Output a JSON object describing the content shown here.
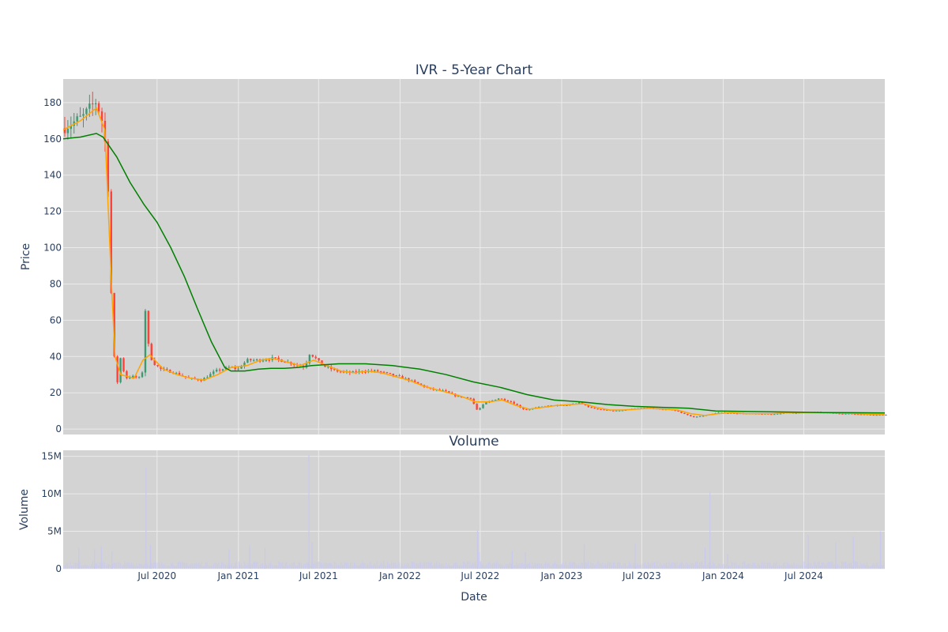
{
  "chart_data": [
    {
      "type": "candlestick",
      "title": "IVR - 5-Year Chart",
      "ylabel": "Price",
      "ylim": [
        -3,
        193
      ],
      "yticks": [
        0,
        20,
        40,
        60,
        80,
        100,
        120,
        140,
        160,
        180
      ],
      "grid": true,
      "series": [
        {
          "name": "",
          "kind": "ohlc",
          "colors": {
            "up": "#3d9970",
            "down": "#ff4136"
          }
        },
        {
          "name": "",
          "kind": "moving-average-short",
          "color": "#ffa500",
          "points": [
            [
              "2019-12-02",
              165
            ],
            [
              "2020-01-10",
              170
            ],
            [
              "2020-02-15",
              177
            ],
            [
              "2020-03-05",
              165
            ],
            [
              "2020-03-20",
              80
            ],
            [
              "2020-03-28",
              40
            ],
            [
              "2020-04-10",
              30
            ],
            [
              "2020-05-10",
              28
            ],
            [
              "2020-05-30",
              38
            ],
            [
              "2020-06-15",
              41
            ],
            [
              "2020-07-15",
              33
            ],
            [
              "2020-08-15",
              30
            ],
            [
              "2020-09-15",
              28
            ],
            [
              "2020-10-15",
              27
            ],
            [
              "2020-11-15",
              30
            ],
            [
              "2020-12-15",
              34
            ],
            [
              "2021-01-20",
              35
            ],
            [
              "2021-02-20",
              38
            ],
            [
              "2021-03-20",
              39
            ],
            [
              "2021-04-20",
              37
            ],
            [
              "2021-05-20",
              35
            ],
            [
              "2021-06-20",
              38
            ],
            [
              "2021-07-20",
              35
            ],
            [
              "2021-08-20",
              32
            ],
            [
              "2021-09-20",
              31
            ],
            [
              "2021-10-20",
              32
            ],
            [
              "2021-11-20",
              31
            ],
            [
              "2021-12-20",
              29
            ],
            [
              "2022-01-20",
              27
            ],
            [
              "2022-02-20",
              24
            ],
            [
              "2022-03-20",
              22
            ],
            [
              "2022-04-20",
              20
            ],
            [
              "2022-05-20",
              18
            ],
            [
              "2022-06-20",
              15
            ],
            [
              "2022-07-20",
              15
            ],
            [
              "2022-08-20",
              16
            ],
            [
              "2022-09-20",
              13
            ],
            [
              "2022-10-20",
              11
            ],
            [
              "2022-11-20",
              12
            ],
            [
              "2022-12-20",
              13
            ],
            [
              "2023-01-20",
              13.5
            ],
            [
              "2023-02-20",
              14
            ],
            [
              "2023-03-20",
              12
            ],
            [
              "2023-04-20",
              10.5
            ],
            [
              "2023-05-20",
              10.5
            ],
            [
              "2023-06-20",
              11
            ],
            [
              "2023-07-20",
              11.5
            ],
            [
              "2023-08-20",
              11
            ],
            [
              "2023-09-20",
              10.5
            ],
            [
              "2023-10-20",
              8.5
            ],
            [
              "2023-11-20",
              7.5
            ],
            [
              "2023-12-20",
              8.5
            ],
            [
              "2024-01-20",
              9
            ],
            [
              "2024-02-20",
              8.5
            ],
            [
              "2024-03-20",
              8.5
            ],
            [
              "2024-04-20",
              8.5
            ],
            [
              "2024-05-20",
              9
            ],
            [
              "2024-06-20",
              9
            ],
            [
              "2024-07-20",
              9
            ],
            [
              "2024-08-20",
              9
            ],
            [
              "2024-09-20",
              8.8
            ],
            [
              "2024-10-20",
              8.6
            ],
            [
              "2024-11-20",
              8.2
            ],
            [
              "2024-12-31",
              8
            ]
          ]
        },
        {
          "name": "",
          "kind": "moving-average-long",
          "color": "#008000",
          "points": [
            [
              "2019-12-02",
              160
            ],
            [
              "2020-01-10",
              161
            ],
            [
              "2020-02-15",
              163
            ],
            [
              "2020-03-01",
              161
            ],
            [
              "2020-04-01",
              150
            ],
            [
              "2020-05-01",
              136
            ],
            [
              "2020-06-01",
              124
            ],
            [
              "2020-07-01",
              114
            ],
            [
              "2020-08-01",
              100
            ],
            [
              "2020-09-01",
              84
            ],
            [
              "2020-10-01",
              66
            ],
            [
              "2020-11-01",
              48
            ],
            [
              "2020-12-01",
              34
            ],
            [
              "2020-12-15",
              32
            ],
            [
              "2021-01-15",
              32
            ],
            [
              "2021-02-15",
              33
            ],
            [
              "2021-03-15",
              33.5
            ],
            [
              "2021-04-15",
              33.5
            ],
            [
              "2021-05-15",
              34
            ],
            [
              "2021-06-15",
              35
            ],
            [
              "2021-08-15",
              36
            ],
            [
              "2021-10-15",
              36
            ],
            [
              "2021-12-15",
              35
            ],
            [
              "2022-02-15",
              33
            ],
            [
              "2022-04-15",
              30
            ],
            [
              "2022-06-15",
              26
            ],
            [
              "2022-08-15",
              23
            ],
            [
              "2022-10-15",
              19
            ],
            [
              "2022-12-15",
              16
            ],
            [
              "2023-02-15",
              15
            ],
            [
              "2023-04-15",
              13.5
            ],
            [
              "2023-06-15",
              12.5
            ],
            [
              "2023-08-15",
              12
            ],
            [
              "2023-10-15",
              11.5
            ],
            [
              "2023-12-15",
              10
            ],
            [
              "2024-02-15",
              9.7
            ],
            [
              "2024-04-15",
              9.5
            ],
            [
              "2024-06-15",
              9.3
            ],
            [
              "2024-08-15",
              9.1
            ],
            [
              "2024-10-15",
              9
            ],
            [
              "2024-12-31",
              8.9
            ]
          ]
        }
      ],
      "price_profile": [
        [
          "2019-12-02",
          166
        ],
        [
          "2020-01-15",
          172
        ],
        [
          "2020-02-15",
          181
        ],
        [
          "2020-02-28",
          170
        ],
        [
          "2020-03-10",
          150
        ],
        [
          "2020-03-16",
          110
        ],
        [
          "2020-03-20",
          70
        ],
        [
          "2020-03-24",
          30
        ],
        [
          "2020-03-28",
          45
        ],
        [
          "2020-04-02",
          25
        ],
        [
          "2020-04-10",
          40
        ],
        [
          "2020-04-20",
          28
        ],
        [
          "2020-05-05",
          29
        ],
        [
          "2020-05-25",
          28
        ],
        [
          "2020-06-01",
          35
        ],
        [
          "2020-06-05",
          70
        ],
        [
          "2020-06-10",
          48
        ],
        [
          "2020-06-20",
          37
        ],
        [
          "2020-07-10",
          33
        ],
        [
          "2020-08-10",
          31
        ],
        [
          "2020-09-10",
          28
        ],
        [
          "2020-10-10",
          27
        ],
        [
          "2020-11-10",
          32
        ],
        [
          "2020-12-10",
          34
        ],
        [
          "2020-12-31",
          33
        ],
        [
          "2021-01-20",
          38
        ],
        [
          "2021-02-20",
          38
        ],
        [
          "2021-03-20",
          39
        ],
        [
          "2021-04-20",
          37
        ],
        [
          "2021-05-20",
          35
        ],
        [
          "2021-06-01",
          34
        ],
        [
          "2021-06-08",
          42
        ],
        [
          "2021-06-20",
          40
        ],
        [
          "2021-07-10",
          35
        ],
        [
          "2021-08-10",
          32
        ],
        [
          "2021-09-10",
          31
        ],
        [
          "2021-10-10",
          32
        ],
        [
          "2021-11-10",
          32
        ],
        [
          "2021-12-10",
          30
        ],
        [
          "2022-01-10",
          28
        ],
        [
          "2022-02-10",
          25
        ],
        [
          "2022-03-10",
          22
        ],
        [
          "2022-04-10",
          21
        ],
        [
          "2022-05-10",
          18
        ],
        [
          "2022-06-10",
          17
        ],
        [
          "2022-06-25",
          10
        ],
        [
          "2022-07-10",
          14
        ],
        [
          "2022-08-10",
          17
        ],
        [
          "2022-09-10",
          15
        ],
        [
          "2022-10-10",
          10.5
        ],
        [
          "2022-11-10",
          12
        ],
        [
          "2022-12-10",
          13
        ],
        [
          "2023-01-10",
          13
        ],
        [
          "2023-02-10",
          14.5
        ],
        [
          "2023-03-10",
          11.5
        ],
        [
          "2023-04-10",
          10.5
        ],
        [
          "2023-05-10",
          10
        ],
        [
          "2023-06-10",
          11
        ],
        [
          "2023-07-10",
          11.5
        ],
        [
          "2023-08-10",
          11
        ],
        [
          "2023-09-10",
          10.5
        ],
        [
          "2023-10-10",
          8
        ],
        [
          "2023-10-25",
          6.5
        ],
        [
          "2023-11-20",
          7.5
        ],
        [
          "2023-12-20",
          9
        ],
        [
          "2024-01-20",
          8.8
        ],
        [
          "2024-02-20",
          8.5
        ],
        [
          "2024-03-20",
          8.3
        ],
        [
          "2024-04-20",
          8.2
        ],
        [
          "2024-05-20",
          9
        ],
        [
          "2024-06-20",
          9
        ],
        [
          "2024-07-20",
          9.3
        ],
        [
          "2024-08-20",
          9
        ],
        [
          "2024-09-20",
          8.6
        ],
        [
          "2024-10-20",
          8.3
        ],
        [
          "2024-11-20",
          8
        ],
        [
          "2024-12-31",
          7.8
        ]
      ]
    },
    {
      "type": "bar",
      "title": "Volume",
      "xlabel": "Date",
      "ylabel": "Volume",
      "ylim": [
        0,
        15800000
      ],
      "yticks": [
        0,
        5000000,
        10000000,
        15000000
      ],
      "ytick_labels": [
        "0",
        "5M",
        "10M",
        "15M"
      ],
      "grid": true,
      "bar_color": "#c9c9ee",
      "spikes": [
        [
          "2020-01-05",
          2800000
        ],
        [
          "2020-02-10",
          2600000
        ],
        [
          "2020-02-25",
          3000000
        ],
        [
          "2020-03-20",
          2300000
        ],
        [
          "2020-06-05",
          13500000
        ],
        [
          "2020-06-15",
          3200000
        ],
        [
          "2020-12-10",
          2600000
        ],
        [
          "2021-01-25",
          3100000
        ],
        [
          "2021-03-01",
          2800000
        ],
        [
          "2021-06-08",
          15200000
        ],
        [
          "2021-06-15",
          3500000
        ],
        [
          "2022-06-24",
          5100000
        ],
        [
          "2022-06-28",
          2200000
        ],
        [
          "2022-09-10",
          2400000
        ],
        [
          "2022-10-10",
          2200000
        ],
        [
          "2023-02-20",
          3300000
        ],
        [
          "2023-06-15",
          3400000
        ],
        [
          "2023-11-20",
          2800000
        ],
        [
          "2023-12-01",
          10200000
        ],
        [
          "2024-01-10",
          2000000
        ],
        [
          "2024-07-10",
          4500000
        ],
        [
          "2024-09-10",
          3500000
        ],
        [
          "2024-10-20",
          4300000
        ],
        [
          "2024-12-20",
          5000000
        ]
      ]
    }
  ],
  "x_axis": {
    "start": "2019-12-02",
    "end": "2024-12-31",
    "ticks": [
      {
        "date": "2020-07-01",
        "label": "Jul 2020"
      },
      {
        "date": "2021-01-01",
        "label": "Jan 2021"
      },
      {
        "date": "2021-07-01",
        "label": "Jul 2021"
      },
      {
        "date": "2022-01-01",
        "label": "Jan 2022"
      },
      {
        "date": "2022-07-01",
        "label": "Jul 2022"
      },
      {
        "date": "2023-01-01",
        "label": "Jan 2023"
      },
      {
        "date": "2023-07-01",
        "label": "Jul 2023"
      },
      {
        "date": "2024-01-01",
        "label": "Jan 2024"
      },
      {
        "date": "2024-07-01",
        "label": "Jul 2024"
      }
    ]
  },
  "colors": {
    "plot_bg": "#d3d3d3",
    "grid": "#ebebeb",
    "text": "#2a3f5f"
  }
}
